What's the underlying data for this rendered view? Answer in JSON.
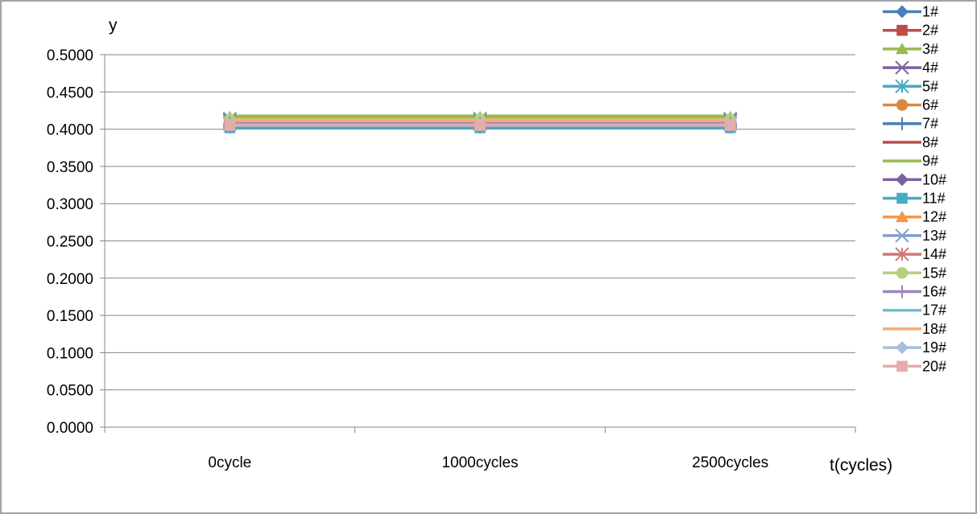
{
  "chart_data": {
    "type": "line",
    "categories": [
      "0cycle",
      "1000cycles",
      "2500cycles"
    ],
    "ylabel": "y",
    "xlabel": "t(cycles)",
    "ylim": [
      0,
      0.5
    ],
    "yticks": [
      "0.0000",
      "0.0500",
      "0.1000",
      "0.1500",
      "0.2000",
      "0.2500",
      "0.3000",
      "0.3500",
      "0.4000",
      "0.4500",
      "0.5000"
    ],
    "grid": true,
    "legend_position": "right",
    "series": [
      {
        "name": "1#",
        "color": "#4a7ebb",
        "marker": "diamond",
        "values": [
          0.41,
          0.41,
          0.41
        ]
      },
      {
        "name": "2#",
        "color": "#be4b48",
        "marker": "square",
        "values": [
          0.408,
          0.408,
          0.408
        ]
      },
      {
        "name": "3#",
        "color": "#98b954",
        "marker": "triangle",
        "values": [
          0.416,
          0.416,
          0.416
        ]
      },
      {
        "name": "4#",
        "color": "#7d60a0",
        "marker": "x",
        "values": [
          0.412,
          0.412,
          0.412
        ]
      },
      {
        "name": "5#",
        "color": "#46aac5",
        "marker": "star",
        "values": [
          0.414,
          0.414,
          0.414
        ]
      },
      {
        "name": "6#",
        "color": "#d88a3b",
        "marker": "circle",
        "values": [
          0.411,
          0.411,
          0.411
        ]
      },
      {
        "name": "7#",
        "color": "#4a7ebb",
        "marker": "plus",
        "values": [
          0.403,
          0.403,
          0.403
        ]
      },
      {
        "name": "8#",
        "color": "#be4b48",
        "marker": "none",
        "values": [
          0.415,
          0.415,
          0.415
        ]
      },
      {
        "name": "9#",
        "color": "#98b954",
        "marker": "none",
        "values": [
          0.418,
          0.418,
          0.418
        ]
      },
      {
        "name": "10#",
        "color": "#7d60a0",
        "marker": "diamond",
        "values": [
          0.409,
          0.409,
          0.409
        ]
      },
      {
        "name": "11#",
        "color": "#46aac5",
        "marker": "square",
        "values": [
          0.402,
          0.402,
          0.402
        ]
      },
      {
        "name": "12#",
        "color": "#f79646",
        "marker": "triangle",
        "values": [
          0.415,
          0.415,
          0.415
        ]
      },
      {
        "name": "13#",
        "color": "#7f9fcf",
        "marker": "x",
        "values": [
          0.407,
          0.407,
          0.407
        ]
      },
      {
        "name": "14#",
        "color": "#d07776",
        "marker": "star",
        "values": [
          0.41,
          0.41,
          0.41
        ]
      },
      {
        "name": "15#",
        "color": "#b2d07e",
        "marker": "circle",
        "values": [
          0.413,
          0.413,
          0.413
        ]
      },
      {
        "name": "16#",
        "color": "#9c85bd",
        "marker": "plus",
        "values": [
          0.408,
          0.408,
          0.408
        ]
      },
      {
        "name": "17#",
        "color": "#6fbfd4",
        "marker": "none",
        "values": [
          0.405,
          0.405,
          0.405
        ]
      },
      {
        "name": "18#",
        "color": "#f8ab72",
        "marker": "none",
        "values": [
          0.411,
          0.411,
          0.411
        ]
      },
      {
        "name": "19#",
        "color": "#a7bde0",
        "marker": "diamond",
        "values": [
          0.406,
          0.406,
          0.406
        ]
      },
      {
        "name": "20#",
        "color": "#e4acab",
        "marker": "square",
        "values": [
          0.405,
          0.405,
          0.405
        ]
      }
    ]
  }
}
